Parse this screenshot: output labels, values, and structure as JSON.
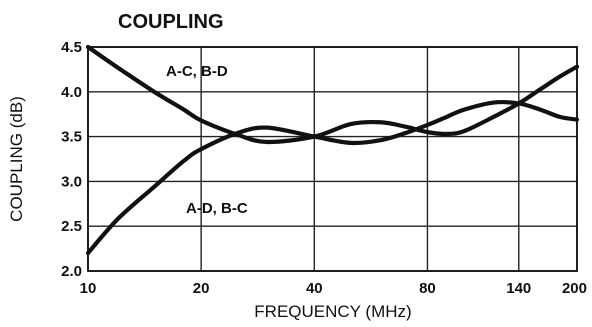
{
  "chart_data": {
    "type": "line",
    "title": "COUPLING",
    "xlabel": "FREQUENCY (MHz)",
    "ylabel": "COUPLING (dB)",
    "xscale": "log",
    "xlim": [
      10,
      200
    ],
    "ylim": [
      2.0,
      4.5
    ],
    "grid": true,
    "x_ticks": [
      10,
      20,
      40,
      80,
      140,
      200
    ],
    "x_tick_labels": [
      "10",
      "20",
      "40",
      "80",
      "140",
      "200"
    ],
    "y_ticks": [
      2.0,
      2.5,
      3.0,
      3.5,
      4.0,
      4.5
    ],
    "y_tick_labels": [
      "2.0",
      "2.5",
      "3.0",
      "3.5",
      "4.0",
      "4.5"
    ],
    "series": [
      {
        "name": "A-C, B-D",
        "x": [
          10,
          12,
          15,
          18,
          20,
          25,
          30,
          40,
          50,
          60,
          70,
          80,
          90,
          100,
          120,
          140,
          160,
          180,
          200
        ],
        "y": [
          4.5,
          4.27,
          4.0,
          3.8,
          3.68,
          3.52,
          3.44,
          3.5,
          3.64,
          3.66,
          3.61,
          3.55,
          3.53,
          3.56,
          3.72,
          3.87,
          4.03,
          4.17,
          4.28
        ]
      },
      {
        "name": "A-D, B-C",
        "x": [
          10,
          12,
          15,
          18,
          20,
          25,
          30,
          40,
          50,
          60,
          70,
          80,
          90,
          100,
          120,
          140,
          160,
          180,
          200
        ],
        "y": [
          2.2,
          2.58,
          2.94,
          3.23,
          3.36,
          3.54,
          3.6,
          3.5,
          3.43,
          3.46,
          3.54,
          3.63,
          3.72,
          3.8,
          3.88,
          3.87,
          3.8,
          3.72,
          3.69
        ]
      }
    ],
    "annotations": [
      "A-C, B-D",
      "A-D, B-C"
    ]
  }
}
